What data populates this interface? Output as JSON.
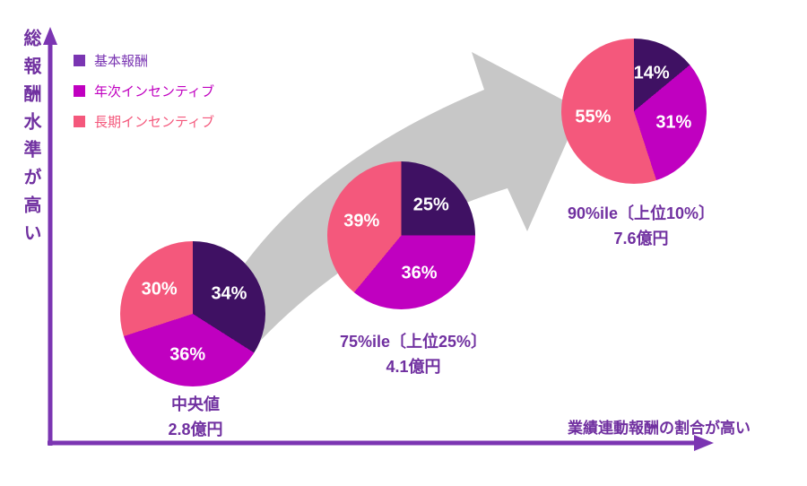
{
  "colors": {
    "axis": "#7B35B2",
    "text_purple": "#7030A0",
    "arrow_gray": "#C7C7C7",
    "percent_label": "#FFFFFF"
  },
  "chart_data": {
    "type": "pie",
    "title": "",
    "xlabel": "業績連動報酬の割合が高い",
    "ylabel": "総報酬水準が高い",
    "legend_position": "top-left",
    "legend": [
      {
        "label": "基本報酬",
        "color": "#7A35B2"
      },
      {
        "label": "年次インセンティブ",
        "color": "#C000C0"
      },
      {
        "label": "長期インセンティブ",
        "color": "#F4587C"
      }
    ],
    "pies": [
      {
        "name": "median",
        "label": "中央値",
        "amount": "2.8億円",
        "slices": [
          {
            "label": "基本報酬",
            "value": 34,
            "color": "#3F1163"
          },
          {
            "label": "年次インセンティブ",
            "value": 36,
            "color": "#C000C0"
          },
          {
            "label": "長期インセンティブ",
            "value": 30,
            "color": "#F4587C"
          }
        ]
      },
      {
        "name": "75th-percentile",
        "label": "75%ile〔上位25%〕",
        "amount": "4.1億円",
        "slices": [
          {
            "label": "基本報酬",
            "value": 25,
            "color": "#3F1163"
          },
          {
            "label": "年次インセンティブ",
            "value": 36,
            "color": "#C000C0"
          },
          {
            "label": "長期インセンティブ",
            "value": 39,
            "color": "#F4587C"
          }
        ]
      },
      {
        "name": "90th-percentile",
        "label": "90%ile〔上位10%〕",
        "amount": "7.6億円",
        "slices": [
          {
            "label": "基本報酬",
            "value": 14,
            "color": "#3F1163"
          },
          {
            "label": "年次インセンティブ",
            "value": 31,
            "color": "#C000C0"
          },
          {
            "label": "長期インセンティブ",
            "value": 55,
            "color": "#F4587C"
          }
        ]
      }
    ]
  }
}
